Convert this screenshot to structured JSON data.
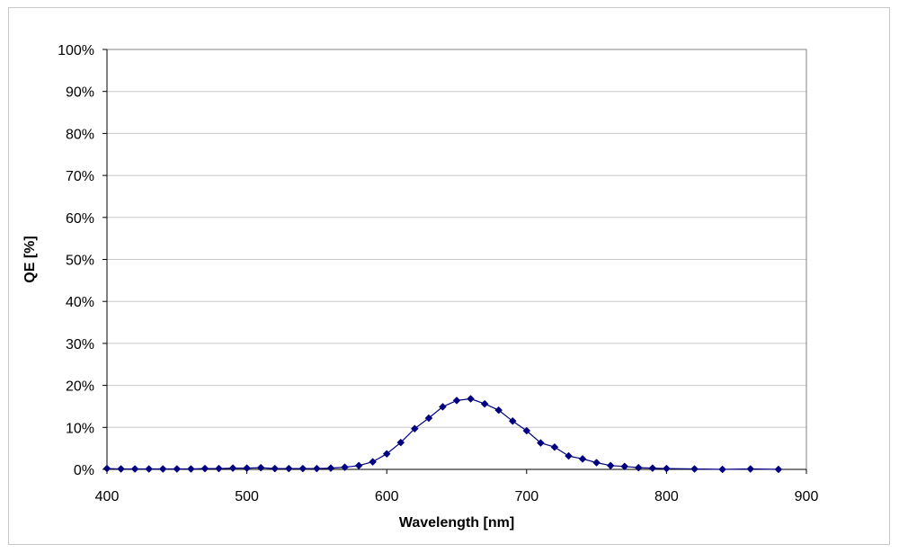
{
  "chart_data": {
    "type": "line",
    "title": "",
    "xlabel": "Wavelength [nm]",
    "ylabel": "QE [%]",
    "xlim": [
      400,
      900
    ],
    "ylim": [
      0,
      1
    ],
    "x_ticks": [
      400,
      500,
      600,
      700,
      800,
      900
    ],
    "x_tick_labels": [
      "400",
      "500",
      "600",
      "700",
      "800",
      "900"
    ],
    "y_ticks": [
      0,
      0.1,
      0.2,
      0.3,
      0.4,
      0.5,
      0.6,
      0.7,
      0.8,
      0.9,
      1.0
    ],
    "y_tick_labels": [
      "0%",
      "10%",
      "20%",
      "30%",
      "40%",
      "50%",
      "60%",
      "70%",
      "80%",
      "90%",
      "100%"
    ],
    "grid": "horizontal",
    "legend": "none",
    "series": [
      {
        "color": "#000080",
        "marker": "diamond",
        "x": [
          400,
          410,
          420,
          430,
          440,
          450,
          460,
          470,
          480,
          490,
          500,
          510,
          520,
          530,
          540,
          550,
          560,
          570,
          580,
          590,
          600,
          610,
          620,
          630,
          640,
          650,
          660,
          670,
          680,
          690,
          700,
          710,
          720,
          730,
          740,
          750,
          760,
          770,
          780,
          790,
          800,
          820,
          840,
          860,
          880
        ],
        "y": [
          0.002,
          0.001,
          0.001,
          0.001,
          0.001,
          0.001,
          0.001,
          0.002,
          0.002,
          0.003,
          0.003,
          0.004,
          0.002,
          0.002,
          0.002,
          0.002,
          0.003,
          0.005,
          0.009,
          0.018,
          0.037,
          0.064,
          0.097,
          0.122,
          0.149,
          0.164,
          0.168,
          0.156,
          0.141,
          0.115,
          0.092,
          0.063,
          0.053,
          0.032,
          0.025,
          0.016,
          0.009,
          0.007,
          0.004,
          0.003,
          0.002,
          0.001,
          0.0,
          0.001,
          0.0
        ]
      }
    ]
  }
}
